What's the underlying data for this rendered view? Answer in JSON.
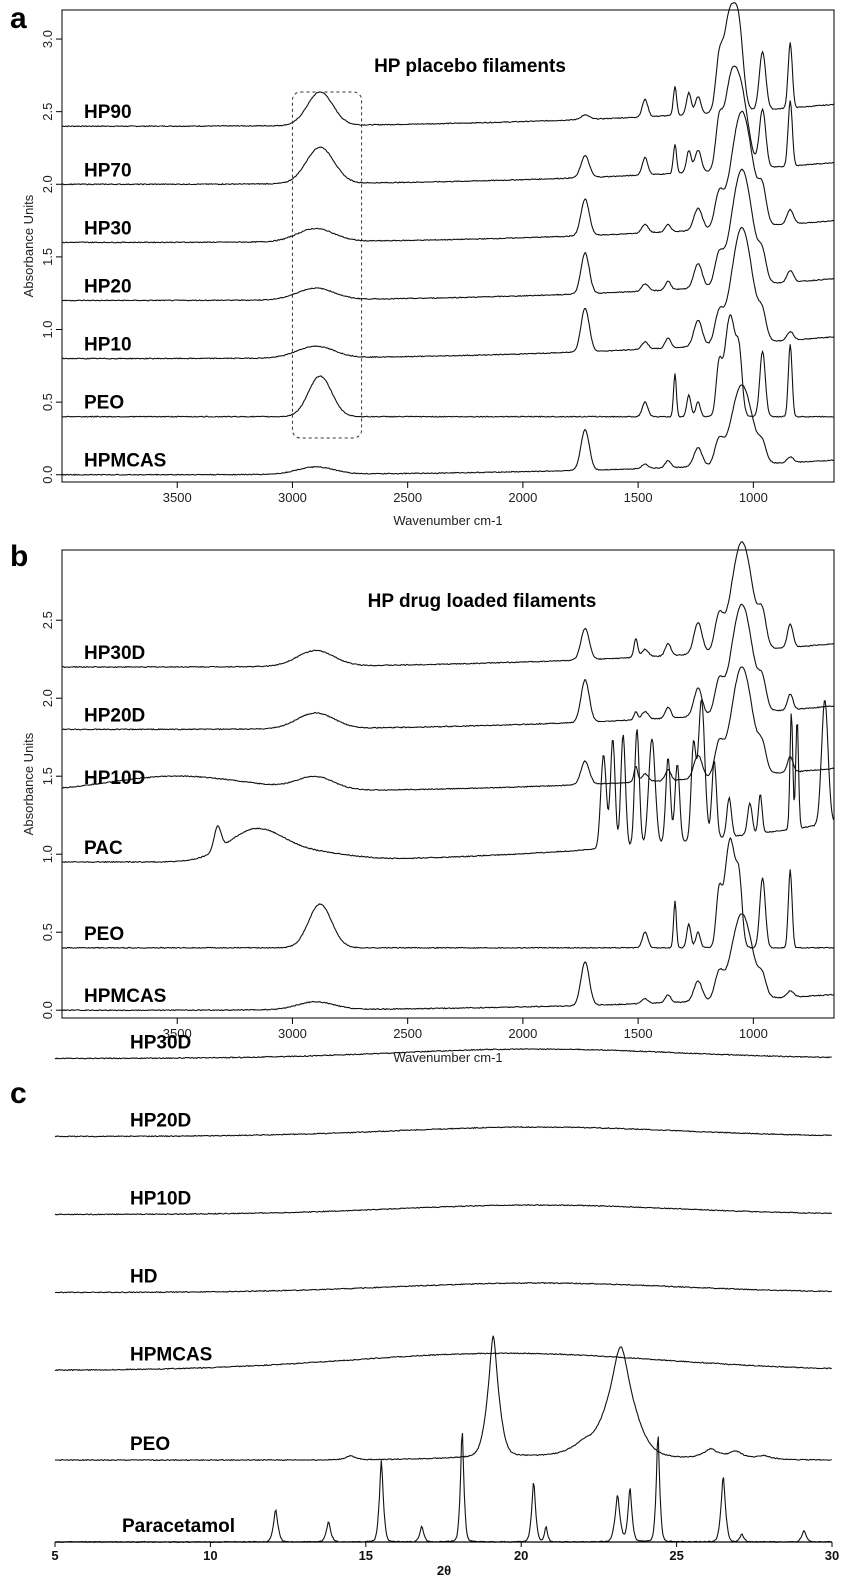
{
  "chart_data": [
    {
      "panel": "a",
      "type": "line",
      "title": "HP placebo filaments",
      "xlabel": "Wavenumber cm-1",
      "ylabel": "Absorbance Units",
      "xlim": [
        4000,
        650
      ],
      "x_reversed": true,
      "ylim": [
        -0.05,
        3.2
      ],
      "xticks": [
        3500,
        3000,
        2500,
        2000,
        1500,
        1000
      ],
      "yticks": [
        0.0,
        0.5,
        1.0,
        1.5,
        2.0,
        2.5,
        3.0
      ],
      "annotation": "dashed box highlighting 3000-2700 cm-1 region",
      "highlight_range": [
        3000,
        2700
      ],
      "series": [
        {
          "name": "HP90",
          "baseline": 2.4,
          "end": 2.55,
          "peaks": [
            [
              2880,
              0.23,
              55
            ],
            [
              1730,
              0.03,
              18
            ],
            [
              1470,
              0.12,
              12
            ],
            [
              1340,
              0.2,
              7
            ],
            [
              1280,
              0.15,
              10
            ],
            [
              1240,
              0.12,
              12
            ],
            [
              1150,
              0.25,
              14
            ],
            [
              1100,
              0.7,
              30
            ],
            [
              1060,
              0.35,
              18
            ],
            [
              960,
              0.4,
              14
            ],
            [
              840,
              0.45,
              9
            ]
          ]
        },
        {
          "name": "HP70",
          "baseline": 2.0,
          "end": 2.15,
          "peaks": [
            [
              2880,
              0.25,
              60
            ],
            [
              1730,
              0.15,
              18
            ],
            [
              1470,
              0.12,
              12
            ],
            [
              1340,
              0.2,
              7
            ],
            [
              1280,
              0.15,
              10
            ],
            [
              1240,
              0.15,
              14
            ],
            [
              1150,
              0.25,
              14
            ],
            [
              1100,
              0.55,
              30
            ],
            [
              1050,
              0.45,
              30
            ],
            [
              960,
              0.4,
              14
            ],
            [
              840,
              0.45,
              9
            ]
          ]
        },
        {
          "name": "HP30",
          "baseline": 1.6,
          "end": 1.75,
          "peaks": [
            [
              2900,
              0.09,
              80
            ],
            [
              1730,
              0.25,
              18
            ],
            [
              1470,
              0.06,
              14
            ],
            [
              1370,
              0.05,
              12
            ],
            [
              1240,
              0.15,
              18
            ],
            [
              1150,
              0.2,
              18
            ],
            [
              1050,
              0.8,
              45
            ],
            [
              960,
              0.2,
              16
            ],
            [
              840,
              0.1,
              14
            ]
          ]
        },
        {
          "name": "HP20",
          "baseline": 1.2,
          "end": 1.35,
          "peaks": [
            [
              2900,
              0.08,
              80
            ],
            [
              1730,
              0.28,
              18
            ],
            [
              1470,
              0.05,
              14
            ],
            [
              1370,
              0.06,
              12
            ],
            [
              1240,
              0.17,
              18
            ],
            [
              1150,
              0.18,
              18
            ],
            [
              1050,
              0.8,
              45
            ],
            [
              960,
              0.15,
              16
            ],
            [
              840,
              0.08,
              14
            ]
          ]
        },
        {
          "name": "HP10",
          "baseline": 0.8,
          "end": 0.95,
          "peaks": [
            [
              2900,
              0.08,
              80
            ],
            [
              1730,
              0.3,
              18
            ],
            [
              1470,
              0.05,
              14
            ],
            [
              1370,
              0.07,
              12
            ],
            [
              1240,
              0.18,
              18
            ],
            [
              1150,
              0.18,
              18
            ],
            [
              1050,
              0.8,
              45
            ],
            [
              960,
              0.14,
              16
            ],
            [
              840,
              0.06,
              14
            ]
          ]
        },
        {
          "name": "PEO",
          "baseline": 0.4,
          "end": 0.4,
          "peaks": [
            [
              2880,
              0.28,
              50
            ],
            [
              1470,
              0.1,
              12
            ],
            [
              1340,
              0.3,
              6
            ],
            [
              1280,
              0.15,
              9
            ],
            [
              1240,
              0.1,
              10
            ],
            [
              1150,
              0.3,
              12
            ],
            [
              1100,
              0.7,
              25
            ],
            [
              1060,
              0.3,
              12
            ],
            [
              960,
              0.45,
              12
            ],
            [
              840,
              0.5,
              8
            ]
          ]
        },
        {
          "name": "HPMCAS",
          "baseline": 0.0,
          "end": 0.1,
          "peaks": [
            [
              2900,
              0.05,
              80
            ],
            [
              1730,
              0.28,
              18
            ],
            [
              1470,
              0.03,
              14
            ],
            [
              1370,
              0.05,
              12
            ],
            [
              1240,
              0.13,
              18
            ],
            [
              1150,
              0.15,
              18
            ],
            [
              1050,
              0.55,
              45
            ],
            [
              960,
              0.1,
              16
            ],
            [
              840,
              0.04,
              14
            ]
          ]
        }
      ]
    },
    {
      "panel": "b",
      "type": "line",
      "title": "HP drug loaded filaments",
      "xlabel": "Wavenumber cm-1",
      "ylabel": "Absorbance Units",
      "xlim": [
        4000,
        650
      ],
      "x_reversed": true,
      "ylim": [
        -0.05,
        2.95
      ],
      "xticks": [
        3500,
        3000,
        2500,
        2000,
        1500,
        1000
      ],
      "yticks": [
        0.0,
        0.5,
        1.0,
        1.5,
        2.0,
        2.5
      ],
      "series": [
        {
          "name": "HP30D",
          "baseline": 2.2,
          "end": 2.35,
          "peaks": [
            [
              2900,
              0.1,
              80
            ],
            [
              1730,
              0.2,
              18
            ],
            [
              1510,
              0.12,
              8
            ],
            [
              1470,
              0.05,
              14
            ],
            [
              1370,
              0.08,
              12
            ],
            [
              1240,
              0.2,
              18
            ],
            [
              1150,
              0.2,
              18
            ],
            [
              1050,
              0.7,
              45
            ],
            [
              960,
              0.18,
              16
            ],
            [
              840,
              0.15,
              12
            ]
          ]
        },
        {
          "name": "HP20D",
          "baseline": 1.8,
          "end": 1.95,
          "peaks": [
            [
              2900,
              0.1,
              80
            ],
            [
              1730,
              0.27,
              18
            ],
            [
              1510,
              0.05,
              8
            ],
            [
              1470,
              0.05,
              14
            ],
            [
              1370,
              0.07,
              12
            ],
            [
              1240,
              0.18,
              18
            ],
            [
              1150,
              0.18,
              18
            ],
            [
              1050,
              0.7,
              45
            ],
            [
              960,
              0.15,
              16
            ],
            [
              840,
              0.1,
              12
            ]
          ]
        },
        {
          "name": "HP10D",
          "baseline": 1.4,
          "end": 1.55,
          "peaks": [
            [
              3500,
              0.1,
              300
            ],
            [
              2900,
              0.08,
              80
            ],
            [
              1730,
              0.15,
              18
            ],
            [
              1510,
              0.1,
              8
            ],
            [
              1470,
              0.05,
              14
            ],
            [
              1370,
              0.07,
              12
            ],
            [
              1240,
              0.15,
              18
            ],
            [
              1150,
              0.18,
              18
            ],
            [
              1050,
              0.7,
              45
            ],
            [
              960,
              0.13,
              16
            ],
            [
              840,
              0.1,
              12
            ]
          ]
        },
        {
          "name": "PAC",
          "baseline": 0.95,
          "end": 1.2,
          "peaks": [
            [
              3325,
              0.15,
              15
            ],
            [
              3160,
              0.2,
              120
            ],
            [
              2900,
              0.05,
              150
            ],
            [
              1650,
              0.6,
              12
            ],
            [
              1610,
              0.7,
              10
            ],
            [
              1565,
              0.72,
              10
            ],
            [
              1505,
              0.75,
              10
            ],
            [
              1440,
              0.68,
              14
            ],
            [
              1370,
              0.55,
              10
            ],
            [
              1330,
              0.5,
              10
            ],
            [
              1260,
              0.6,
              10
            ],
            [
              1225,
              0.9,
              14
            ],
            [
              1170,
              0.5,
              10
            ],
            [
              1105,
              0.25,
              10
            ],
            [
              1015,
              0.2,
              10
            ],
            [
              970,
              0.25,
              8
            ],
            [
              835,
              0.75,
              6
            ],
            [
              810,
              0.7,
              6
            ],
            [
              690,
              0.8,
              14
            ]
          ]
        },
        {
          "name": "PEO",
          "baseline": 0.4,
          "end": 0.4,
          "peaks": [
            [
              2880,
              0.28,
              50
            ],
            [
              1470,
              0.1,
              12
            ],
            [
              1340,
              0.3,
              6
            ],
            [
              1280,
              0.15,
              9
            ],
            [
              1240,
              0.1,
              10
            ],
            [
              1150,
              0.3,
              12
            ],
            [
              1100,
              0.7,
              25
            ],
            [
              1060,
              0.3,
              12
            ],
            [
              960,
              0.45,
              12
            ],
            [
              840,
              0.5,
              8
            ]
          ]
        },
        {
          "name": "HPMCAS",
          "baseline": 0.0,
          "end": 0.1,
          "peaks": [
            [
              2900,
              0.05,
              80
            ],
            [
              1730,
              0.28,
              18
            ],
            [
              1470,
              0.03,
              14
            ],
            [
              1370,
              0.05,
              12
            ],
            [
              1240,
              0.13,
              18
            ],
            [
              1150,
              0.15,
              18
            ],
            [
              1050,
              0.55,
              45
            ],
            [
              960,
              0.1,
              16
            ],
            [
              840,
              0.04,
              14
            ]
          ]
        }
      ]
    },
    {
      "panel": "c",
      "type": "line",
      "xlabel": "2θ",
      "xlim": [
        5,
        30
      ],
      "xticks": [
        5,
        10,
        15,
        20,
        25,
        30
      ],
      "series": [
        {
          "name": "HP30D",
          "offset": 6.2,
          "halo": [
            20.5,
            0.12,
            4.5
          ],
          "peaks": []
        },
        {
          "name": "HP20D",
          "offset": 5.2,
          "halo": [
            20.5,
            0.12,
            4.5
          ],
          "peaks": []
        },
        {
          "name": "HP10D",
          "offset": 4.2,
          "halo": [
            20.5,
            0.12,
            4.5
          ],
          "peaks": []
        },
        {
          "name": "HD",
          "offset": 3.2,
          "halo": [
            20.5,
            0.12,
            4.5
          ],
          "peaks": []
        },
        {
          "name": "HPMCAS",
          "offset": 2.2,
          "halo": [
            19.5,
            0.22,
            5.0
          ],
          "peaks": []
        },
        {
          "name": "PEO",
          "offset": 1.05,
          "halo": [
            21.5,
            0.05,
            3.0
          ],
          "peaks": [
            [
              14.5,
              0.05,
              0.2
            ],
            [
              19.1,
              1.55,
              0.22
            ],
            [
              22.0,
              0.15,
              0.5
            ],
            [
              23.2,
              1.4,
              0.5
            ],
            [
              26.1,
              0.12,
              0.3
            ],
            [
              26.9,
              0.1,
              0.3
            ],
            [
              27.8,
              0.05,
              0.3
            ]
          ]
        },
        {
          "name": "Paracetamol",
          "offset": 0.0,
          "halo": [
            20,
            0.0,
            5
          ],
          "peaks": [
            [
              12.1,
              0.42,
              0.09
            ],
            [
              13.8,
              0.26,
              0.09
            ],
            [
              15.5,
              1.05,
              0.08
            ],
            [
              16.8,
              0.2,
              0.08
            ],
            [
              18.1,
              1.45,
              0.07
            ],
            [
              20.4,
              0.78,
              0.08
            ],
            [
              20.8,
              0.2,
              0.06
            ],
            [
              23.1,
              0.6,
              0.1
            ],
            [
              23.5,
              0.7,
              0.08
            ],
            [
              24.4,
              1.4,
              0.07
            ],
            [
              26.5,
              0.85,
              0.09
            ],
            [
              27.1,
              0.1,
              0.08
            ],
            [
              29.1,
              0.15,
              0.09
            ]
          ]
        }
      ]
    }
  ]
}
